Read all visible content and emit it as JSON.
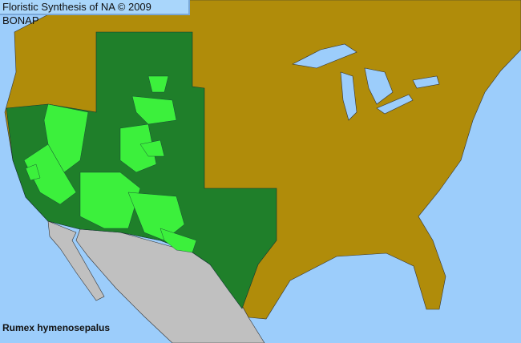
{
  "header": {
    "title": "Floristic Synthesis of NA © 2009 BONAP"
  },
  "species": {
    "name": "Rumex hymenosepalus"
  },
  "colors": {
    "ocean": "#9ccdfb",
    "absent_county": "#b08c0a",
    "present_state": "#1f7f2a",
    "present_county": "#3cf03c",
    "outside_range": "#c0c0c0"
  }
}
